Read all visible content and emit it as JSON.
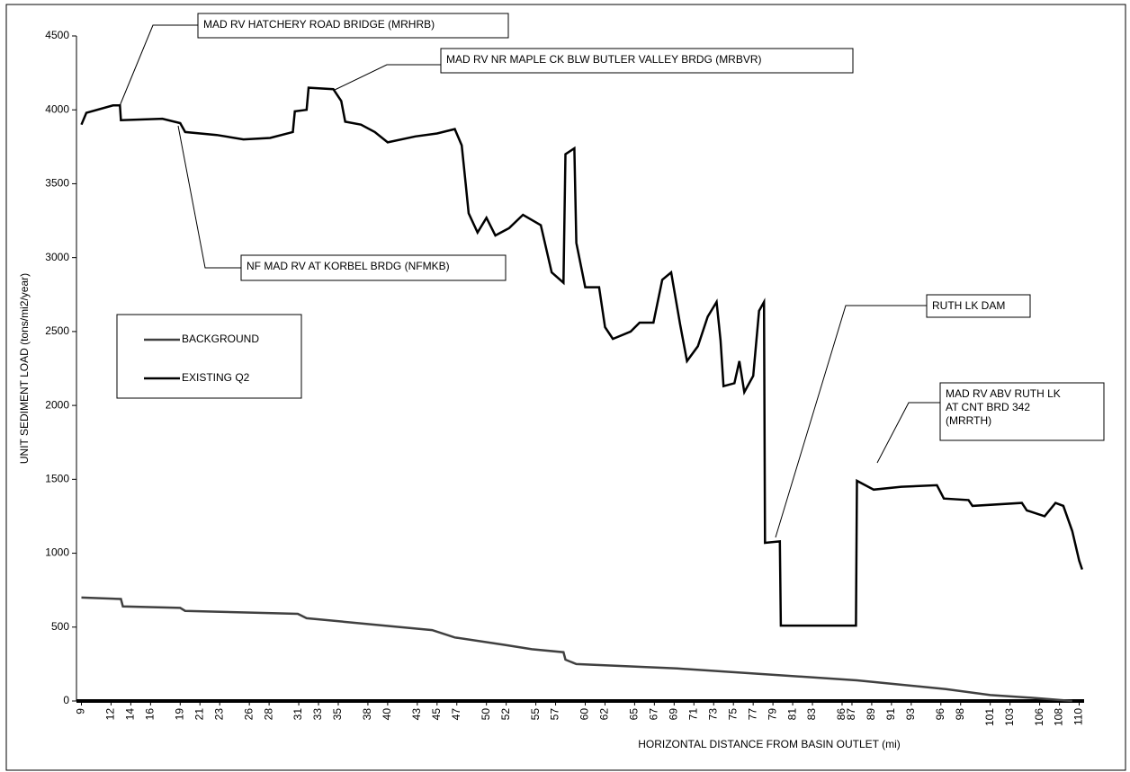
{
  "chart_data": {
    "type": "line",
    "ylabel": "UNIT SEDIMENT LOAD (tons/mi2/year)",
    "xlabel": "HORIZONTAL DISTANCE FROM BASIN OUTLET (mi)",
    "ylim": [
      0,
      4500
    ],
    "yticks": [
      0,
      500,
      1000,
      1500,
      2000,
      2500,
      3000,
      3500,
      4000,
      4500
    ],
    "xlim": [
      8.5,
      110.5
    ],
    "xticks": [
      9,
      12,
      14,
      16,
      19,
      21,
      23,
      26,
      28,
      31,
      33,
      35,
      38,
      40,
      43,
      45,
      47,
      50,
      52,
      55,
      57,
      60,
      62,
      65,
      67,
      69,
      71,
      73,
      75,
      77,
      79,
      81,
      83,
      86,
      87,
      89,
      91,
      93,
      96,
      98,
      101,
      103,
      106,
      108,
      110
    ],
    "legend": "left",
    "series": [
      {
        "name": "BACKGROUND",
        "color": "#404040",
        "x": [
          9,
          13,
          13.2,
          19,
          19.5,
          30.9,
          31.8,
          44.5,
          46.8,
          51.8,
          54.6,
          57.8,
          58,
          59.1,
          69.3,
          78.4,
          87.5,
          96.5,
          101,
          105.6,
          109.3
        ],
        "values": [
          700,
          690,
          640,
          630,
          610,
          590,
          560,
          480,
          430,
          380,
          350,
          330,
          280,
          250,
          220,
          180,
          140,
          80,
          40,
          20,
          0
        ]
      },
      {
        "name": "EXISTING Q2",
        "color": "#000000",
        "x": [
          9,
          9.5,
          12.2,
          12.9,
          13,
          17.2,
          19,
          19.5,
          22.7,
          25.4,
          28.1,
          30.4,
          30.6,
          31.8,
          32,
          34.5,
          35.3,
          35.7,
          37.3,
          38.7,
          40,
          42.8,
          45,
          46.8,
          47.5,
          47.9,
          48.2,
          49.1,
          50,
          50.9,
          52.3,
          53.7,
          55.5,
          56.6,
          57.8,
          58,
          58.9,
          59.1,
          60,
          61.4,
          62,
          62.8,
          64.6,
          65.5,
          66.9,
          67.8,
          68.7,
          69.6,
          70.3,
          71.4,
          72.4,
          73.3,
          73.7,
          74,
          75.1,
          75.6,
          76.1,
          77,
          77.6,
          78.1,
          78.2,
          79.7,
          79.8,
          87.4,
          87.5,
          89.2,
          92,
          95.6,
          96.3,
          98.8,
          99.2,
          104.2,
          104.7,
          106.5,
          107.6,
          108.4,
          109.3,
          110,
          110.3
        ],
        "values": [
          3900,
          3980,
          4030,
          4030,
          3930,
          3940,
          3910,
          3850,
          3830,
          3800,
          3810,
          3850,
          3990,
          4000,
          4150,
          4140,
          4060,
          3920,
          3900,
          3850,
          3780,
          3820,
          3840,
          3870,
          3760,
          3500,
          3300,
          3170,
          3270,
          3150,
          3200,
          3290,
          3220,
          2900,
          2830,
          3700,
          3740,
          3100,
          2800,
          2800,
          2530,
          2450,
          2500,
          2560,
          2560,
          2850,
          2900,
          2550,
          2300,
          2400,
          2600,
          2700,
          2440,
          2130,
          2150,
          2300,
          2090,
          2200,
          2640,
          2700,
          1070,
          1080,
          510,
          510,
          1490,
          1430,
          1450,
          1460,
          1370,
          1360,
          1320,
          1340,
          1290,
          1250,
          1340,
          1320,
          1150,
          950,
          890
        ]
      }
    ],
    "annotations": [
      {
        "lines": [
          "MAD RV HATCHERY ROAD BRIDGE (MRHRB)"
        ]
      },
      {
        "lines": [
          "MAD RV NR MAPLE CK BLW BUTLER VALLEY BRDG (MRBVR)"
        ]
      },
      {
        "lines": [
          "NF MAD RV AT KORBEL BRDG (NFMKB)"
        ]
      },
      {
        "lines": [
          "RUTH LK DAM"
        ]
      },
      {
        "lines": [
          "MAD RV ABV RUTH LK",
          "AT CNT BRD 342",
          "(MRRTH)"
        ]
      }
    ]
  }
}
